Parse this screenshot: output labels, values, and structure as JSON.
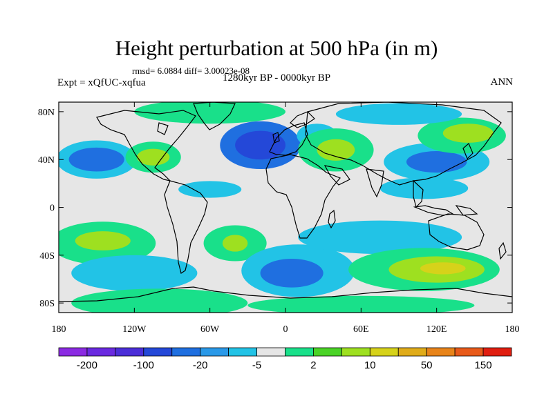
{
  "title": "Height perturbation at 500 hPa (in m)",
  "stats": "rmsd= 6.0884 diff= 3.00023e-08",
  "experiment": "Expt = xQfUC-xqfua",
  "period": "1280kyr BP - 0000kyr BP",
  "season": "ANN",
  "axes": {
    "lat_ticks": [
      "80N",
      "40N",
      "0",
      "40S",
      "80S"
    ],
    "lon_ticks": [
      "180",
      "120W",
      "60W",
      "0",
      "60E",
      "120E",
      "180"
    ]
  },
  "colorbar": {
    "colors": [
      "#8b2be2",
      "#6a2ae0",
      "#4b2ed8",
      "#2448d8",
      "#1f6fe0",
      "#2a99e8",
      "#22c3e6",
      "#e6e6e6",
      "#19e08a",
      "#4ad326",
      "#9ee020",
      "#d6d21a",
      "#e0ac1a",
      "#e8841a",
      "#e85a1a",
      "#e01e10"
    ],
    "labels": [
      "-200",
      "-100",
      "-20",
      "-5",
      "2",
      "10",
      "50",
      "150"
    ]
  },
  "field_blobs": [
    {
      "lon": -150,
      "lat": 40,
      "rlon": 32,
      "rlat": 16,
      "v": -1
    },
    {
      "lon": -150,
      "lat": 40,
      "rlon": 22,
      "rlat": 10,
      "v": -2
    },
    {
      "lon": -105,
      "lat": 42,
      "rlon": 22,
      "rlat": 13,
      "v": 1
    },
    {
      "lon": -105,
      "lat": 42,
      "rlon": 13,
      "rlat": 7,
      "v": 2
    },
    {
      "lon": -20,
      "lat": 52,
      "rlon": 32,
      "rlat": 20,
      "v": -2
    },
    {
      "lon": -20,
      "lat": 52,
      "rlon": 20,
      "rlat": 12,
      "v": -3
    },
    {
      "lon": 25,
      "lat": 60,
      "rlon": 16,
      "rlat": 10,
      "v": -1
    },
    {
      "lon": 40,
      "lat": 48,
      "rlon": 30,
      "rlat": 18,
      "v": 1
    },
    {
      "lon": 40,
      "lat": 48,
      "rlon": 15,
      "rlat": 9,
      "v": 2
    },
    {
      "lon": 120,
      "lat": 38,
      "rlon": 42,
      "rlat": 16,
      "v": -1
    },
    {
      "lon": 120,
      "lat": 38,
      "rlon": 24,
      "rlat": 9,
      "v": -2
    },
    {
      "lon": 140,
      "lat": 60,
      "rlon": 35,
      "rlat": 15,
      "v": 1
    },
    {
      "lon": 145,
      "lat": 62,
      "rlon": 20,
      "rlat": 8,
      "v": 2
    },
    {
      "lon": -60,
      "lat": 80,
      "rlon": 60,
      "rlat": 10,
      "v": 1
    },
    {
      "lon": 90,
      "lat": 78,
      "rlon": 50,
      "rlat": 9,
      "v": -1
    },
    {
      "lon": -60,
      "lat": 15,
      "rlon": 25,
      "rlat": 7,
      "v": -1
    },
    {
      "lon": 110,
      "lat": 16,
      "rlon": 35,
      "rlat": 9,
      "v": -1
    },
    {
      "lon": -145,
      "lat": -30,
      "rlon": 42,
      "rlat": 18,
      "v": 1
    },
    {
      "lon": -145,
      "lat": -28,
      "rlon": 22,
      "rlat": 8,
      "v": 2
    },
    {
      "lon": -120,
      "lat": -55,
      "rlon": 50,
      "rlat": 15,
      "v": -1
    },
    {
      "lon": -40,
      "lat": -30,
      "rlon": 25,
      "rlat": 15,
      "v": 1
    },
    {
      "lon": -40,
      "lat": -30,
      "rlon": 10,
      "rlat": 7,
      "v": 2
    },
    {
      "lon": 10,
      "lat": -53,
      "rlon": 45,
      "rlat": 22,
      "v": -1
    },
    {
      "lon": 5,
      "lat": -55,
      "rlon": 25,
      "rlat": 12,
      "v": -2
    },
    {
      "lon": 75,
      "lat": -25,
      "rlon": 65,
      "rlat": 14,
      "v": -1
    },
    {
      "lon": 110,
      "lat": -52,
      "rlon": 60,
      "rlat": 18,
      "v": 1
    },
    {
      "lon": 120,
      "lat": -52,
      "rlon": 38,
      "rlat": 11,
      "v": 2
    },
    {
      "lon": 125,
      "lat": -51,
      "rlon": 18,
      "rlat": 5,
      "v": 3
    },
    {
      "lon": -100,
      "lat": -80,
      "rlon": 70,
      "rlat": 12,
      "v": 1
    },
    {
      "lon": 60,
      "lat": -82,
      "rlon": 90,
      "rlat": 8,
      "v": 1
    }
  ]
}
